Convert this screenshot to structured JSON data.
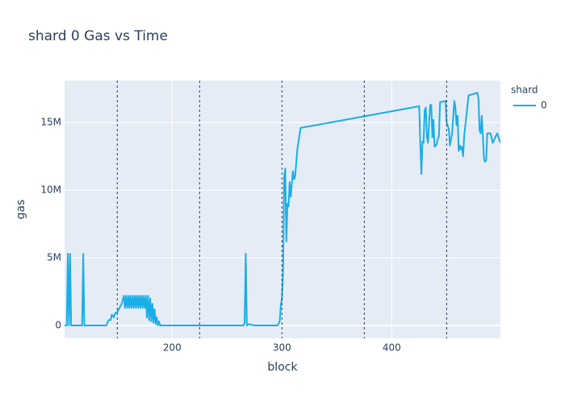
{
  "chart_data": {
    "type": "line",
    "title": "shard 0 Gas vs Time",
    "x_label": "block",
    "y_label": "gas",
    "legend_title": "shard",
    "xlim": [
      102,
      499
    ],
    "ylim": [
      -950000,
      18100000
    ],
    "xticks": [
      200,
      300,
      400
    ],
    "yticks": [
      {
        "value": 0,
        "label": "0"
      },
      {
        "value": 5000000,
        "label": "5M"
      },
      {
        "value": 10000000,
        "label": "10M"
      },
      {
        "value": 15000000,
        "label": "15M"
      }
    ],
    "vlines": [
      150,
      225,
      300,
      375,
      450
    ],
    "grid": true,
    "series": [
      {
        "name": "0",
        "color": "#19aee6",
        "x": [
          102,
          104,
          105,
          106,
          107,
          108,
          118,
          119,
          120,
          140,
          142,
          144,
          145,
          147,
          148,
          150,
          152,
          154,
          156,
          157,
          158,
          159,
          160,
          161,
          162,
          163,
          164,
          165,
          166,
          167,
          168,
          169,
          170,
          171,
          172,
          173,
          174,
          175,
          176,
          177,
          178,
          179,
          180,
          181,
          182,
          183,
          184,
          185,
          186,
          187,
          188,
          189,
          265,
          266,
          267,
          268,
          270,
          275,
          296,
          298,
          299,
          300,
          301,
          302,
          303,
          304,
          305,
          306,
          307,
          308,
          309,
          310,
          311,
          312,
          314,
          317,
          425,
          426,
          427,
          428,
          429,
          430,
          431,
          432,
          433,
          435,
          436,
          437,
          438,
          439,
          441,
          442,
          443,
          444,
          449,
          450,
          452,
          453,
          455,
          457,
          458,
          459,
          460,
          461,
          462,
          463,
          464,
          465,
          466,
          470,
          478,
          479,
          480,
          481,
          482,
          483,
          484,
          485,
          486,
          487,
          490,
          492,
          496,
          499
        ],
        "values": [
          0,
          0,
          5300000,
          0,
          5300000,
          0,
          0,
          5300000,
          0,
          0,
          400000,
          400000,
          800000,
          600000,
          900000,
          1000000,
          1300000,
          1600000,
          2200000,
          1300000,
          2200000,
          1300000,
          2200000,
          1300000,
          2200000,
          1300000,
          2200000,
          1300000,
          2200000,
          1300000,
          2200000,
          1300000,
          2200000,
          1300000,
          2200000,
          1300000,
          2200000,
          1300000,
          2200000,
          600000,
          2200000,
          400000,
          2000000,
          300000,
          1600000,
          200000,
          1200000,
          100000,
          600000,
          0,
          300000,
          0,
          0,
          200000,
          5300000,
          0,
          100000,
          0,
          0,
          300000,
          1500000,
          2000000,
          4000000,
          11000000,
          11600000,
          6200000,
          9000000,
          8800000,
          10600000,
          9500000,
          10500000,
          11400000,
          10800000,
          11000000,
          13000000,
          14600000,
          16200000,
          13500000,
          11200000,
          13600000,
          13500000,
          15900000,
          16100000,
          14000000,
          13500000,
          16300000,
          16300000,
          13900000,
          15200000,
          13200000,
          13400000,
          13800000,
          14000000,
          16500000,
          16600000,
          15000000,
          14500000,
          13300000,
          14200000,
          16600000,
          16100000,
          14800000,
          15500000,
          12900000,
          13300000,
          13000000,
          13200000,
          12500000,
          14000000,
          17000000,
          17200000,
          16800000,
          14400000,
          14200000,
          15500000,
          14000000,
          12300000,
          12100000,
          12200000,
          14200000,
          14200000,
          13500000,
          14200000,
          13500000
        ]
      }
    ]
  }
}
